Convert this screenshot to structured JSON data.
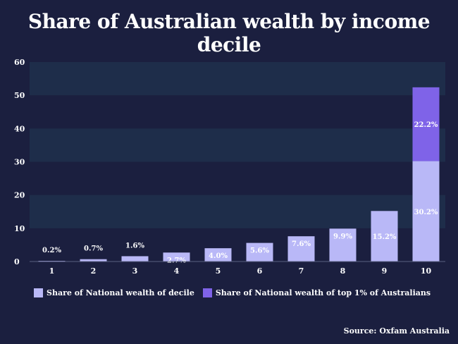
{
  "title": "Share of Australian wealth by income decile",
  "source": "Source: Oxfam Australia",
  "colors": {
    "background": "#1b1f3f",
    "band": "#1e2d4a",
    "decile": "#b9b8f7",
    "top1": "#7f63e8"
  },
  "chart_data": {
    "type": "bar",
    "stacked": true,
    "categories": [
      "1",
      "2",
      "3",
      "4",
      "5",
      "6",
      "7",
      "8",
      "9",
      "10"
    ],
    "series": [
      {
        "name": "Share of National wealth of decile",
        "values": [
          0.2,
          0.7,
          1.6,
          2.7,
          4.0,
          5.6,
          7.6,
          9.9,
          15.2,
          30.2
        ],
        "labels": [
          "0.2%",
          "0.7%",
          "1.6%",
          "2.7%",
          "4.0%",
          "5.6%",
          "7.6%",
          "9.9%",
          "15.2%",
          "30.2%"
        ],
        "color": "#b9b8f7"
      },
      {
        "name": "Share of National wealth of top 1% of Australians",
        "values": [
          0,
          0,
          0,
          0,
          0,
          0,
          0,
          0,
          0,
          22.2
        ],
        "labels": [
          "",
          "",
          "",
          "",
          "",
          "",
          "",
          "",
          "",
          "22.2%"
        ],
        "color": "#7f63e8"
      }
    ],
    "ylim": [
      0,
      60
    ],
    "yticks": [
      "0",
      "10",
      "20",
      "30",
      "40",
      "50",
      "60"
    ],
    "xlabel": "",
    "ylabel": "",
    "grid": "alternating horizontal bands",
    "legend": "bottom"
  }
}
